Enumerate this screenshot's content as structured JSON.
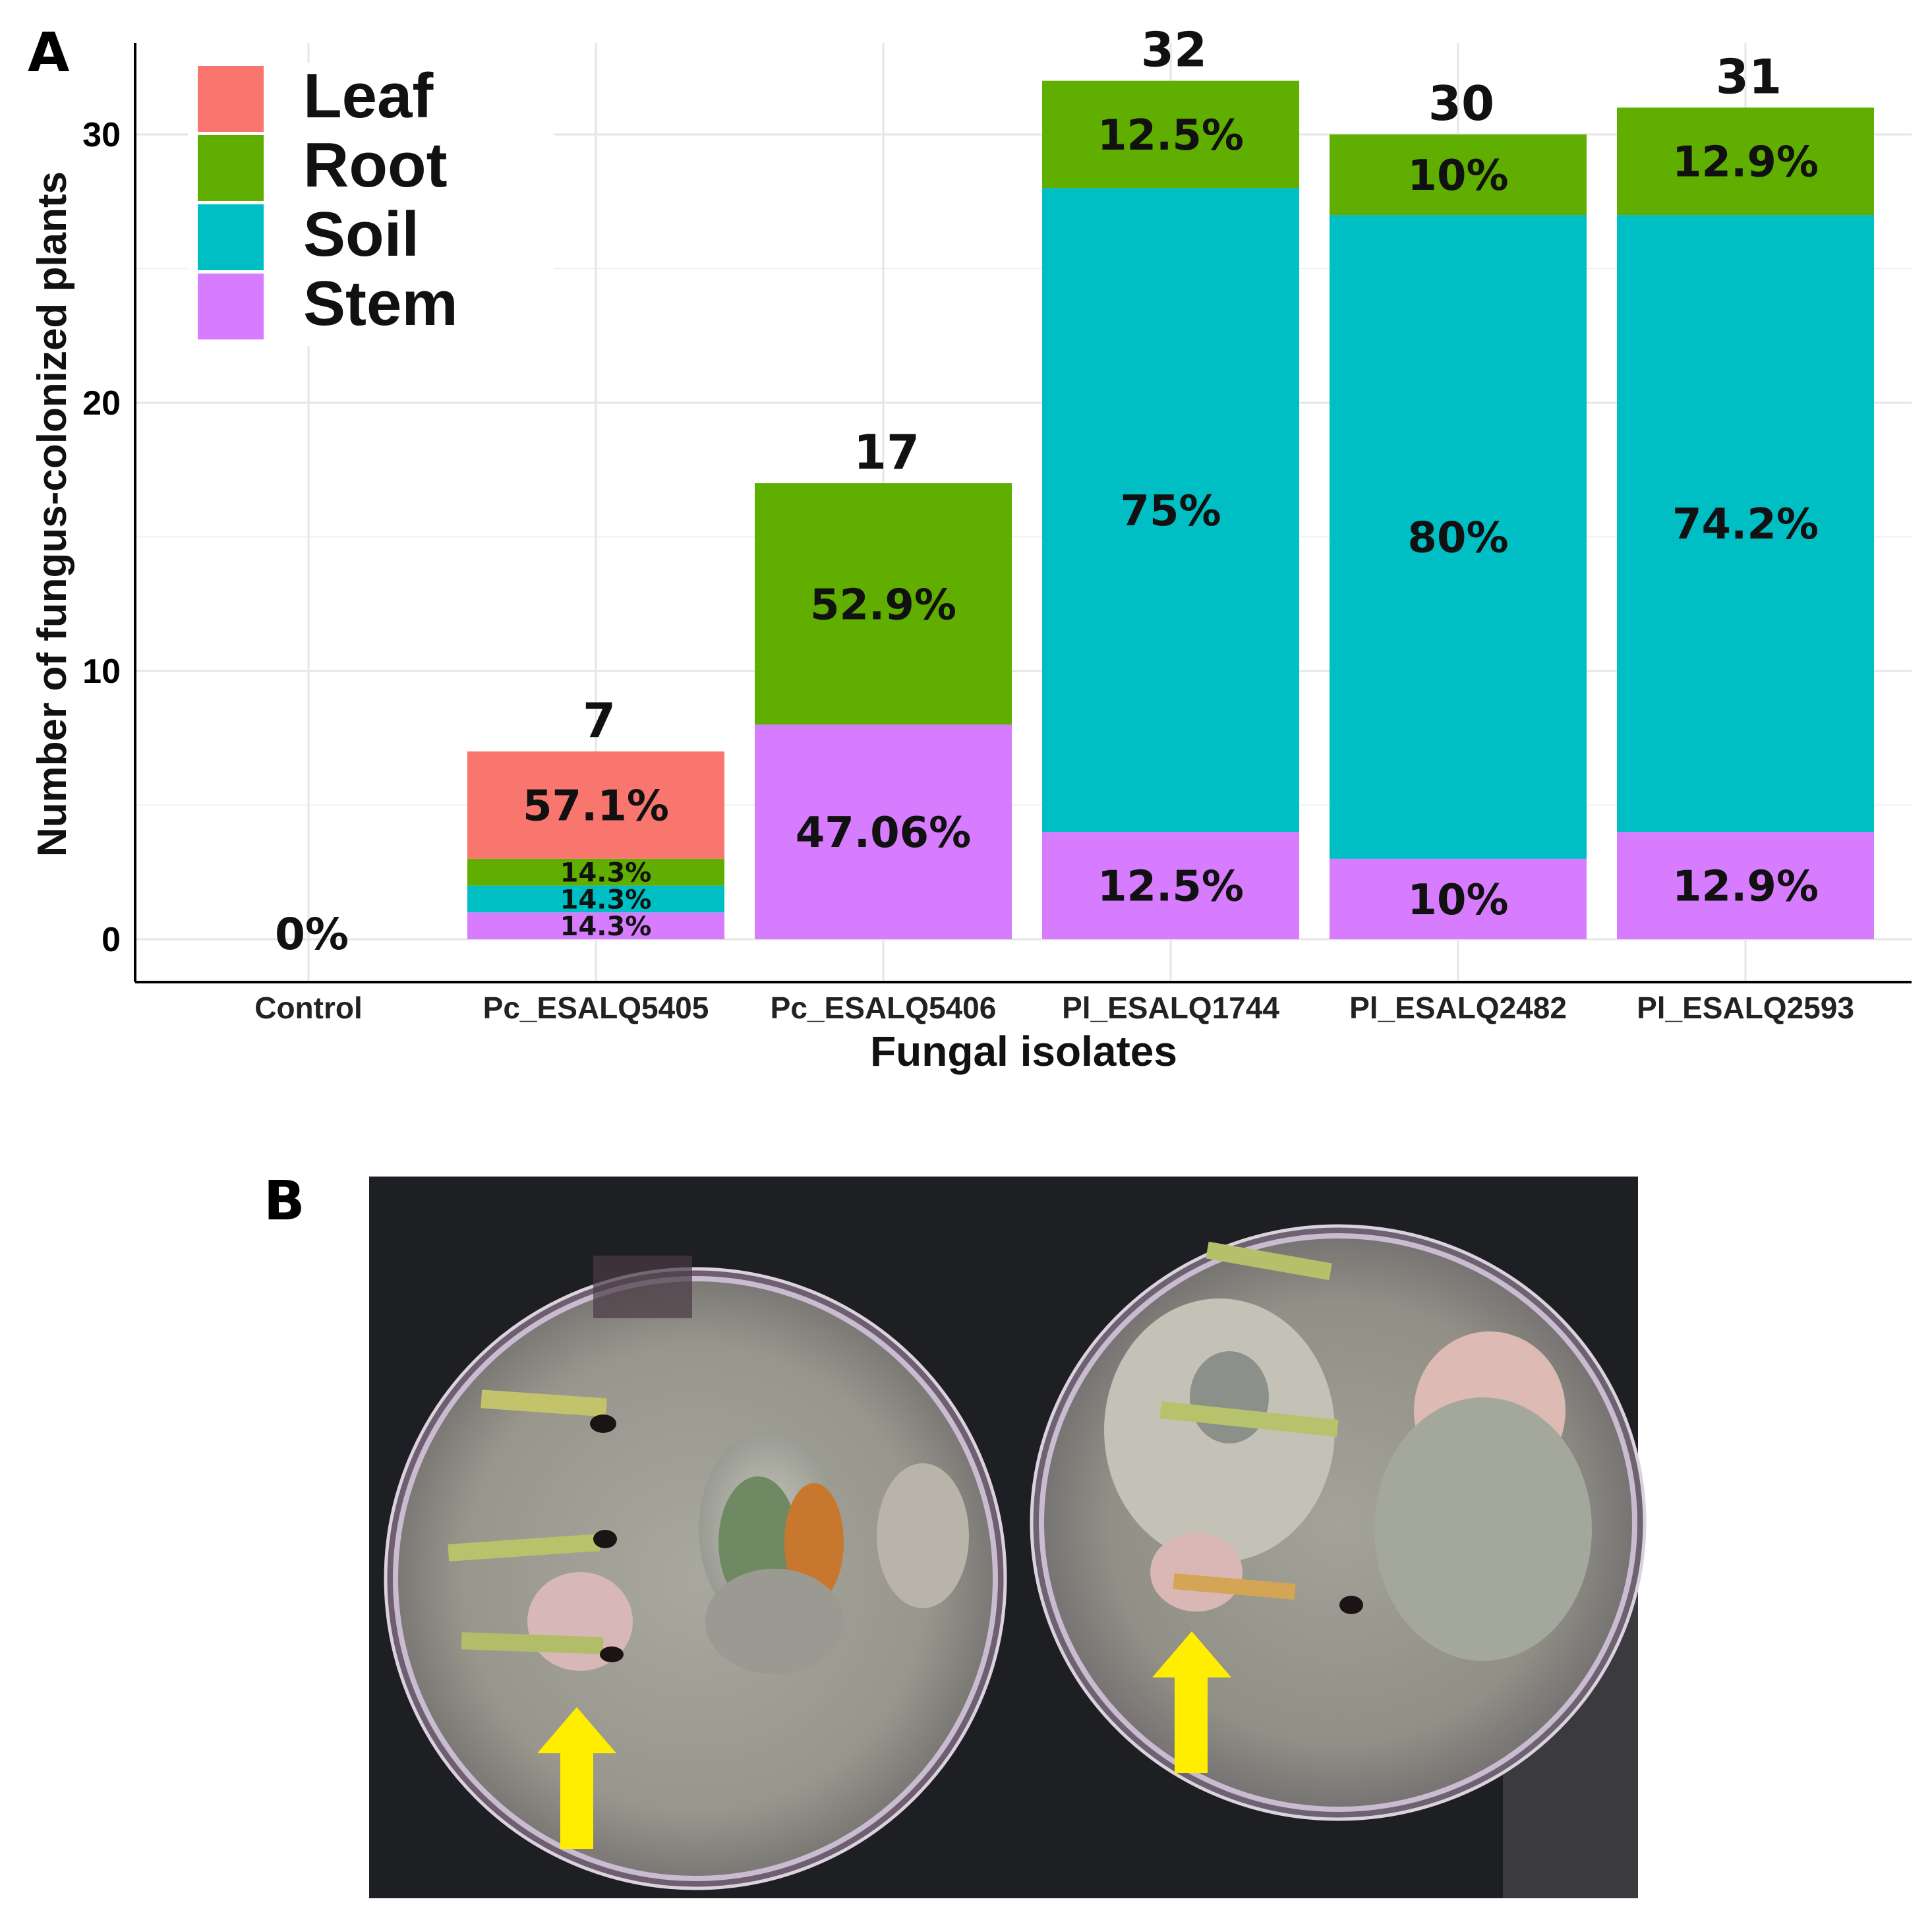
{
  "panels": {
    "a_label": "A",
    "b_label": "B"
  },
  "chart_data": {
    "type": "bar",
    "stacked": true,
    "xlabel": "Fungal isolates",
    "ylabel": "Number of fungus-colonized plants",
    "ylim": [
      0,
      33
    ],
    "yticks": [
      0,
      10,
      20,
      30
    ],
    "grid": true,
    "legend_position": "top-left",
    "categories": [
      "Control",
      "Pc_ESALQ5405",
      "Pc_ESALQ5406",
      "Pl_ESALQ1744",
      "Pl_ESALQ2482",
      "Pl_ESALQ2593"
    ],
    "totals": [
      0,
      7,
      17,
      32,
      30,
      31
    ],
    "total_labels": [
      "",
      "7",
      "17",
      "32",
      "30",
      "31"
    ],
    "empty_labels": [
      "0%",
      "",
      "",
      "",
      "",
      ""
    ],
    "series": [
      {
        "name": "Stem",
        "color": "#d87cff",
        "values": [
          0,
          1,
          8,
          4,
          3,
          4
        ],
        "labels": [
          "",
          "14.3%",
          "47.06%",
          "12.5%",
          "10%",
          "12.9%"
        ]
      },
      {
        "name": "Soil",
        "color": "#00bfc4",
        "values": [
          0,
          1,
          0,
          24,
          24,
          23
        ],
        "labels": [
          "",
          "14.3%",
          "",
          "75%",
          "80%",
          "74.2%"
        ]
      },
      {
        "name": "Root",
        "color": "#5fae00",
        "values": [
          0,
          1,
          9,
          4,
          3,
          4
        ],
        "labels": [
          "",
          "14.3%",
          "52.9%",
          "12.5%",
          "10%",
          "12.9%"
        ]
      },
      {
        "name": "Leaf",
        "color": "#f8766d",
        "values": [
          0,
          4,
          0,
          0,
          0,
          0
        ],
        "labels": [
          "",
          "57.1%",
          "",
          "",
          "",
          ""
        ]
      }
    ],
    "legend_order": [
      "Leaf",
      "Root",
      "Soil",
      "Stem"
    ]
  },
  "photo": {
    "description_icon": "petri-dishes-photo",
    "arrow_color": "#ffee00"
  }
}
